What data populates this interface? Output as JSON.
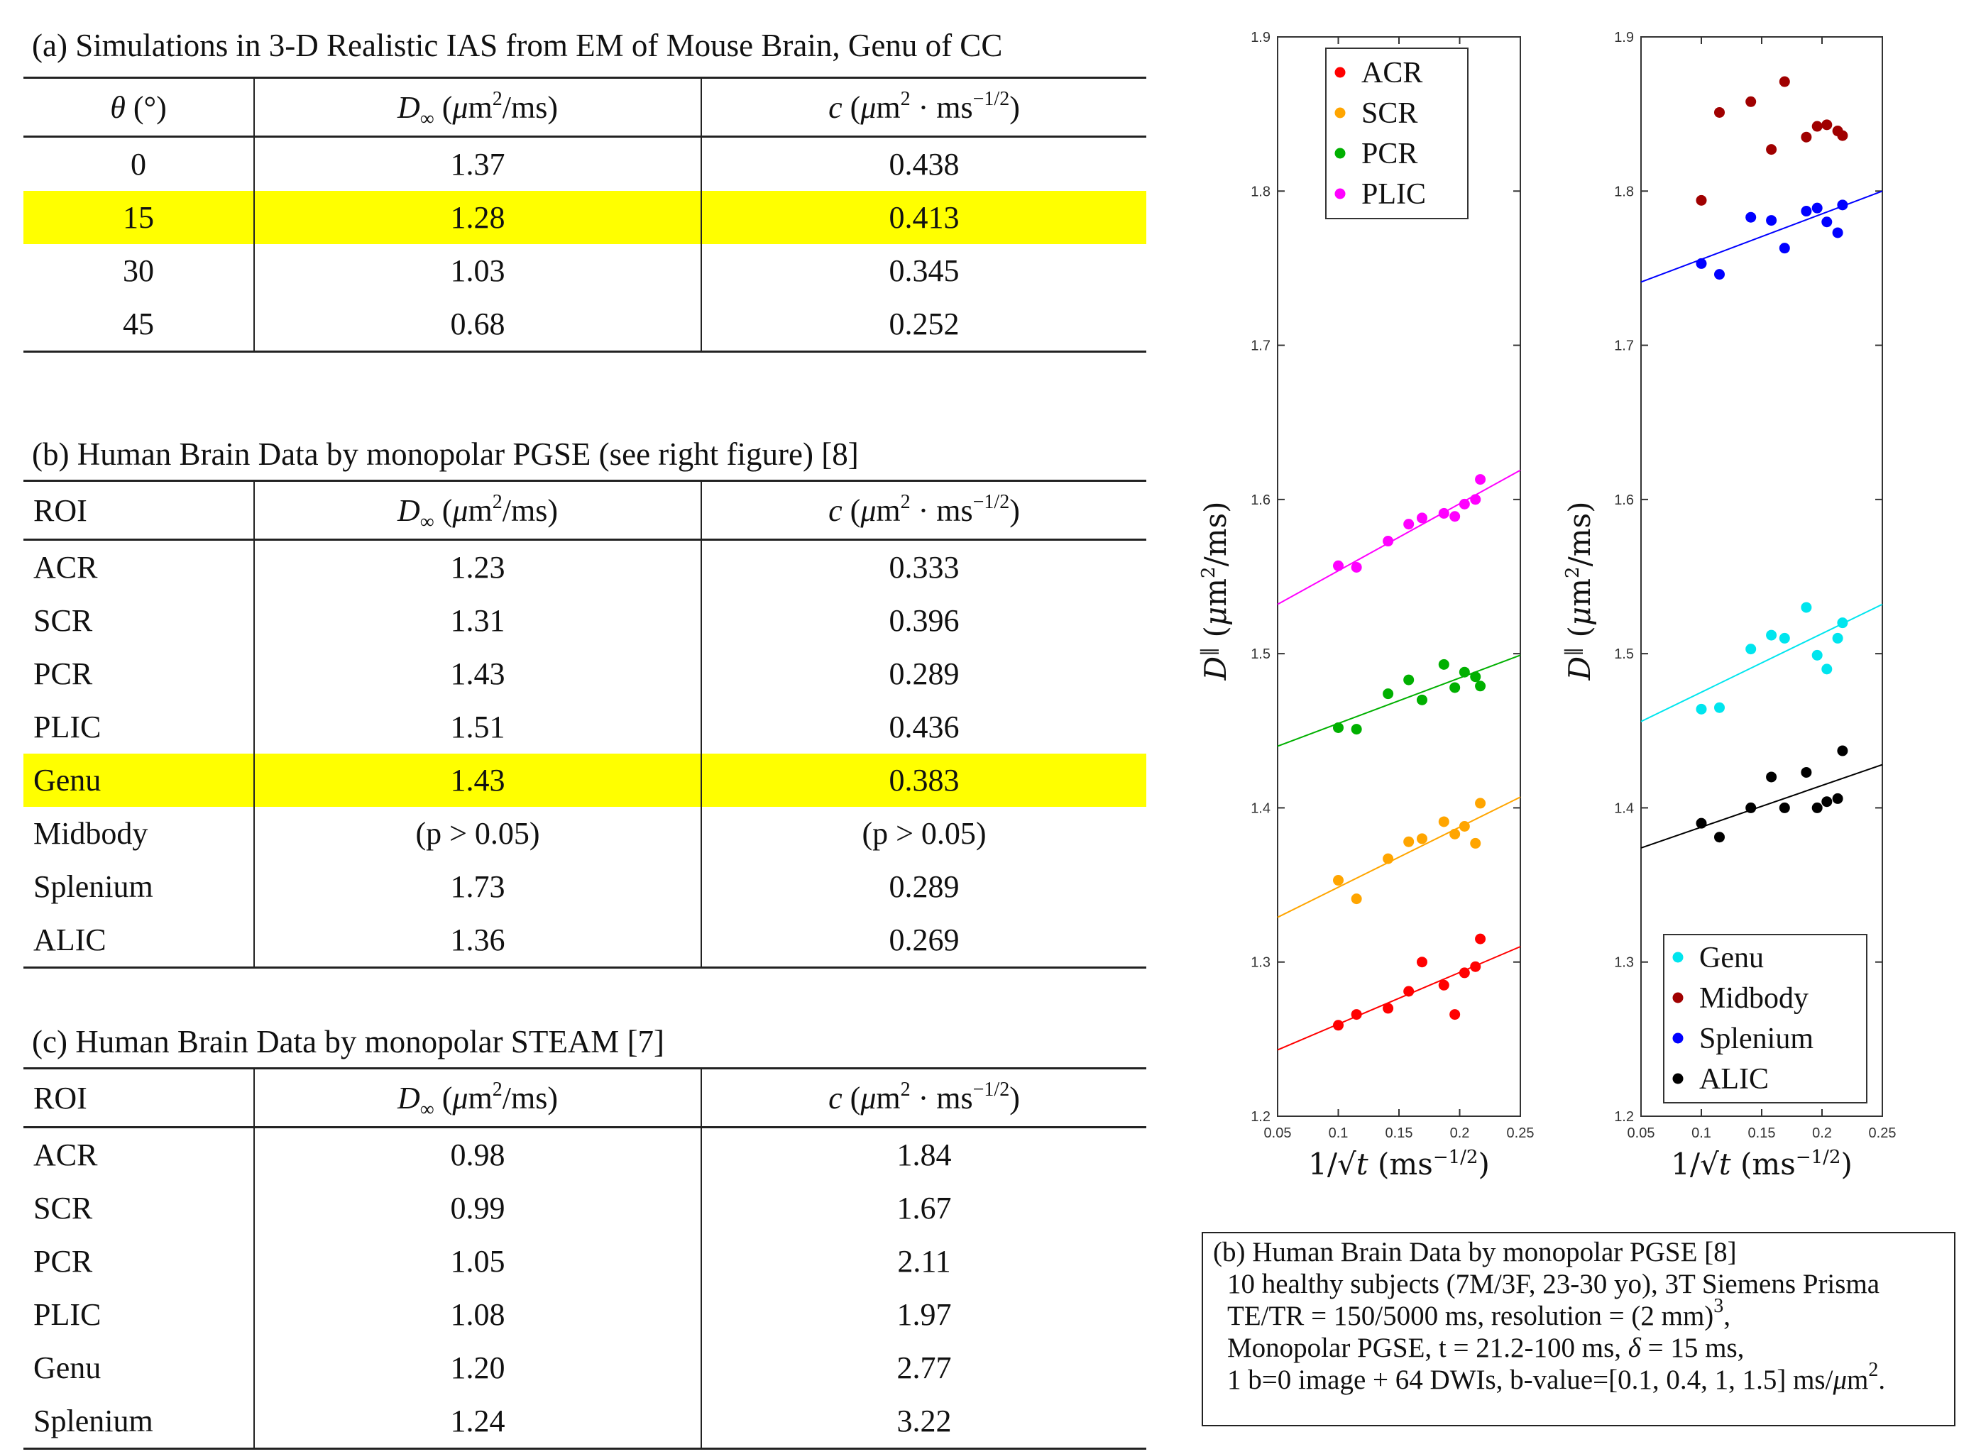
{
  "table_a": {
    "title": "(a) Simulations in 3-D Realistic IAS from EM of Mouse Brain, Genu of CC",
    "columns": [
      "θ (°)",
      "D∞ (μm2/ms)",
      "c (μm2 · ms−1/2)"
    ],
    "rows": [
      {
        "label": "0",
        "d": "1.37",
        "c": "0.438"
      },
      {
        "label": "15",
        "d": "1.28",
        "c": "0.413"
      },
      {
        "label": "30",
        "d": "1.03",
        "c": "0.345"
      },
      {
        "label": "45",
        "d": "0.68",
        "c": "0.252"
      }
    ],
    "highlight_color": "#ffff00"
  },
  "table_b": {
    "title": "(b) Human Brain Data by monopolar PGSE (see right figure) [8]",
    "columns": [
      "ROI",
      "D∞ (μm2/ms)",
      "c (μm2 · ms−1/2)"
    ],
    "rows": [
      {
        "label": "ACR",
        "d": "1.23",
        "c": "0.333"
      },
      {
        "label": "SCR",
        "d": "1.31",
        "c": "0.396"
      },
      {
        "label": "PCR",
        "d": "1.43",
        "c": "0.289"
      },
      {
        "label": "PLIC",
        "d": "1.51",
        "c": "0.436"
      },
      {
        "label": "Genu",
        "d": "1.43",
        "c": "0.383"
      },
      {
        "label": "Midbody",
        "d": "(p > 0.05)",
        "c": "(p > 0.05)"
      },
      {
        "label": "Splenium",
        "d": "1.73",
        "c": "0.289"
      },
      {
        "label": "ALIC",
        "d": "1.36",
        "c": "0.269"
      }
    ]
  },
  "table_c": {
    "title": "(c) Human Brain Data by monopolar STEAM [7]",
    "columns": [
      "ROI",
      "D∞ (μm2/ms)",
      "c (μm2 · ms−1/2)"
    ],
    "rows": [
      {
        "label": "ACR",
        "d": "0.98",
        "c": "1.84"
      },
      {
        "label": "SCR",
        "d": "0.99",
        "c": "1.67"
      },
      {
        "label": "PCR",
        "d": "1.05",
        "c": "2.11"
      },
      {
        "label": "PLIC",
        "d": "1.08",
        "c": "1.97"
      },
      {
        "label": "Genu",
        "d": "1.20",
        "c": "2.77"
      },
      {
        "label": "Splenium",
        "d": "1.24",
        "c": "3.22"
      }
    ]
  },
  "infobox": {
    "line1": "(b) Human Brain Data by monopolar PGSE [8]",
    "line2": "10 healthy subjects (7M/3F, 23-30 yo), 3T Siemens Prisma",
    "line3": "TE/TR = 150/5000 ms, resolution = (2 mm)3,",
    "line4": "Monopolar PGSE, t = 21.2-100 ms, δ = 15 ms,",
    "line5": "1 b=0 image + 64 DWIs, b-value=[0.1, 0.4, 1, 1.5] ms/μm2."
  },
  "chart_data": [
    {
      "type": "scatter",
      "xlabel": "1/√t (ms−1/2)",
      "ylabel": "D‖ (μm2/ms)",
      "xlim": [
        0.05,
        0.25
      ],
      "ylim": [
        1.2,
        1.9
      ],
      "xticks": [
        "0.05",
        "0.1",
        "0.15",
        "0.2",
        "0.25"
      ],
      "yticks": [
        "1.2",
        "1.3",
        "1.4",
        "1.5",
        "1.6",
        "1.7",
        "1.8",
        "1.9"
      ],
      "legend_position": "top-right",
      "series": [
        {
          "name": "ACR",
          "color": "#ff0000",
          "x": [
            0.1,
            0.115,
            0.141,
            0.158,
            0.169,
            0.187,
            0.196,
            0.204,
            0.213,
            0.217
          ],
          "y": [
            1.259,
            1.266,
            1.27,
            1.281,
            1.3,
            1.285,
            1.266,
            1.293,
            1.297,
            1.315
          ],
          "fit": [
            [
              0.05,
              1.243
            ],
            [
              0.25,
              1.31
            ]
          ]
        },
        {
          "name": "SCR",
          "color": "#ffa500",
          "x": [
            0.1,
            0.115,
            0.141,
            0.158,
            0.169,
            0.187,
            0.196,
            0.204,
            0.213,
            0.217
          ],
          "y": [
            1.353,
            1.341,
            1.367,
            1.378,
            1.38,
            1.391,
            1.383,
            1.388,
            1.377,
            1.403
          ],
          "fit": [
            [
              0.05,
              1.329
            ],
            [
              0.25,
              1.407
            ]
          ]
        },
        {
          "name": "PCR",
          "color": "#00b000",
          "x": [
            0.1,
            0.115,
            0.141,
            0.158,
            0.169,
            0.187,
            0.196,
            0.204,
            0.213,
            0.217
          ],
          "y": [
            1.452,
            1.451,
            1.474,
            1.483,
            1.47,
            1.493,
            1.478,
            1.488,
            1.485,
            1.479
          ],
          "fit": [
            [
              0.05,
              1.44
            ],
            [
              0.25,
              1.499
            ]
          ]
        },
        {
          "name": "PLIC",
          "color": "#ff00ff",
          "x": [
            0.1,
            0.115,
            0.141,
            0.158,
            0.169,
            0.187,
            0.196,
            0.204,
            0.213,
            0.217
          ],
          "y": [
            1.557,
            1.556,
            1.573,
            1.584,
            1.588,
            1.591,
            1.589,
            1.597,
            1.6,
            1.613
          ],
          "fit": [
            [
              0.05,
              1.532
            ],
            [
              0.25,
              1.619
            ]
          ]
        }
      ]
    },
    {
      "type": "scatter",
      "xlabel": "1/√t (ms−1/2)",
      "ylabel": "D‖ (μm2/ms)",
      "xlim": [
        0.05,
        0.25
      ],
      "ylim": [
        1.2,
        1.9
      ],
      "xticks": [
        "0.05",
        "0.1",
        "0.15",
        "0.2",
        "0.25"
      ],
      "yticks": [
        "1.2",
        "1.3",
        "1.4",
        "1.5",
        "1.6",
        "1.7",
        "1.8",
        "1.9"
      ],
      "legend_position": "bottom-right",
      "series": [
        {
          "name": "Genu",
          "color": "#00e5ee",
          "x": [
            0.1,
            0.115,
            0.141,
            0.158,
            0.169,
            0.187,
            0.196,
            0.204,
            0.213,
            0.217
          ],
          "y": [
            1.464,
            1.465,
            1.503,
            1.512,
            1.51,
            1.53,
            1.499,
            1.49,
            1.51,
            1.52
          ],
          "fit": [
            [
              0.05,
              1.456
            ],
            [
              0.25,
              1.532
            ]
          ]
        },
        {
          "name": "Midbody",
          "color": "#a00000",
          "x": [
            0.1,
            0.115,
            0.141,
            0.158,
            0.169,
            0.187,
            0.196,
            0.204,
            0.213,
            0.217
          ],
          "y": [
            1.794,
            1.851,
            1.858,
            1.827,
            1.871,
            1.835,
            1.842,
            1.843,
            1.839,
            1.836
          ],
          "fit": null
        },
        {
          "name": "Splenium",
          "color": "#0000ff",
          "x": [
            0.1,
            0.115,
            0.141,
            0.158,
            0.169,
            0.187,
            0.196,
            0.204,
            0.213,
            0.217
          ],
          "y": [
            1.753,
            1.746,
            1.783,
            1.781,
            1.763,
            1.787,
            1.789,
            1.78,
            1.773,
            1.791
          ],
          "fit": [
            [
              0.05,
              1.741
            ],
            [
              0.25,
              1.8
            ]
          ]
        },
        {
          "name": "ALIC",
          "color": "#000000",
          "x": [
            0.1,
            0.115,
            0.141,
            0.158,
            0.169,
            0.187,
            0.196,
            0.204,
            0.213,
            0.217
          ],
          "y": [
            1.39,
            1.381,
            1.4,
            1.42,
            1.4,
            1.423,
            1.4,
            1.404,
            1.406,
            1.437
          ],
          "fit": [
            [
              0.05,
              1.374
            ],
            [
              0.25,
              1.428
            ]
          ]
        }
      ]
    }
  ]
}
